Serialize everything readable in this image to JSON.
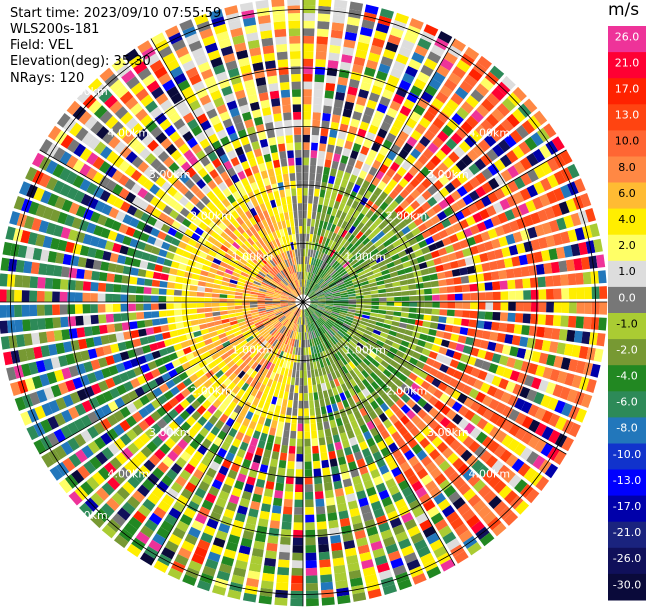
{
  "info": {
    "start_time": "Start time: 2023/09/10 07:55:59",
    "instrument": "WLS200s-181",
    "field": "Field: VEL",
    "elevation": "Elevation(deg): 35.30",
    "nrays": "NRays: 120"
  },
  "colorbar": {
    "unit": "m/s",
    "levels": [
      {
        "label": "26.0",
        "color": "#ee3399"
      },
      {
        "label": "21.0",
        "color": "#ff0033"
      },
      {
        "label": "17.0",
        "color": "#ff2200"
      },
      {
        "label": "13.0",
        "color": "#ff4411"
      },
      {
        "label": "10.0",
        "color": "#ff6633"
      },
      {
        "label": "8.0",
        "color": "#ff8844"
      },
      {
        "label": "6.0",
        "color": "#ffbb33"
      },
      {
        "label": "4.0",
        "color": "#ffee00"
      },
      {
        "label": "2.0",
        "color": "#ffff66"
      },
      {
        "label": "1.0",
        "color": "#dddddd"
      },
      {
        "label": "0.0",
        "color": "#777777"
      },
      {
        "label": "-1.0",
        "color": "#aacc33"
      },
      {
        "label": "-2.0",
        "color": "#779933"
      },
      {
        "label": "-4.0",
        "color": "#228822"
      },
      {
        "label": "-6.0",
        "color": "#2d8a58"
      },
      {
        "label": "-8.0",
        "color": "#2277bb"
      },
      {
        "label": "-10.0",
        "color": "#1133cc"
      },
      {
        "label": "-13.0",
        "color": "#0000ff"
      },
      {
        "label": "-17.0",
        "color": "#0000aa"
      },
      {
        "label": "-21.0",
        "color": "#1a237e"
      },
      {
        "label": "-26.0",
        "color": "#10105a"
      },
      {
        "label": "-30.0",
        "color": "#0a0a3a"
      }
    ]
  },
  "chart_data": {
    "type": "heatmap",
    "projection": "polar PPI",
    "field": "VEL",
    "units": "m/s",
    "nrays": 120,
    "range_rings_km": [
      1.0,
      2.0,
      3.0,
      4.0,
      5.0
    ],
    "ring_labels_east": [
      "1.00km",
      "2.00km",
      "3.00km",
      "4.00km"
    ],
    "ring_labels_west": [
      "1.00km",
      "2.00km",
      "3.00km",
      "4.00km",
      "5.00km"
    ],
    "max_range_km": 5.2,
    "structure": "near-range dipole: receding (positive, orange/yellow) to west, approaching (negative, green) to east; noisy multicolor far-range gates",
    "grid": true
  }
}
